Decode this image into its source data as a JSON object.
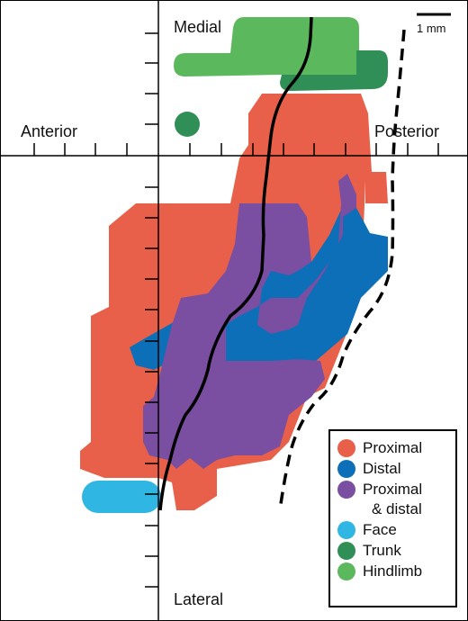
{
  "axes": {
    "top": "Medial",
    "bottom": "Lateral",
    "left": "Anterior",
    "right": "Posterior"
  },
  "scale_bar": {
    "label": "1 mm"
  },
  "legend": [
    {
      "key": "proximal",
      "label": "Proximal",
      "label2": "",
      "color": "#e8604a"
    },
    {
      "key": "distal",
      "label": "Distal",
      "label2": "",
      "color": "#0d6fb8"
    },
    {
      "key": "proximal_distal",
      "label": "Proximal",
      "label2": "& distal",
      "color": "#7a4ea0"
    },
    {
      "key": "face",
      "label": "Face",
      "label2": "",
      "color": "#2fb6e2"
    },
    {
      "key": "trunk",
      "label": "Trunk",
      "label2": "",
      "color": "#2f8f57"
    },
    {
      "key": "hindlimb",
      "label": "Hindlimb",
      "label2": "",
      "color": "#5cb85c"
    }
  ]
}
